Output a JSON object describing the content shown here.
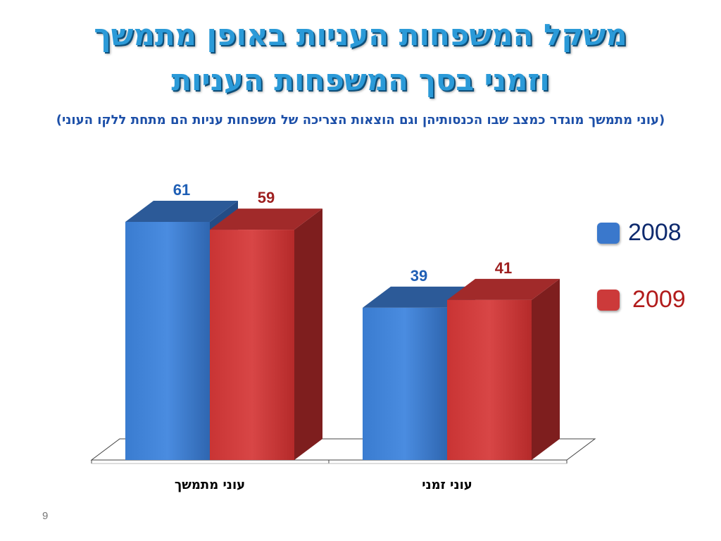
{
  "slide": {
    "title_line1": "משקל המשפחות העניות באופן מתמשך",
    "title_line2": "וזמני בסך המשפחות העניות",
    "subtitle": "(עוני מתמשך מוגדר כמצב שבו הכנסותיהן וגם הוצאות הצריכה של משפחות עניות הם מתחת ללקו העוני)",
    "page_number": "9"
  },
  "legend": [
    {
      "label": "2008",
      "color": "#3a78cc",
      "text_color": "#0e2a6e"
    },
    {
      "label": "2009",
      "color": "#cc3a3a",
      "text_color": "#b21c1c"
    }
  ],
  "chart_data": {
    "type": "bar",
    "categories": [
      "עוני מתמשך",
      "עוני זמני"
    ],
    "series": [
      {
        "name": "2008",
        "values": [
          61,
          39
        ],
        "color": "#3a78cc",
        "label_color": "#1f5fb5"
      },
      {
        "name": "2009",
        "values": [
          59,
          41
        ],
        "color": "#cc3a3a",
        "label_color": "#9e1f1f"
      }
    ],
    "ylim": [
      0,
      61
    ],
    "grid": false,
    "legend_position": "right",
    "three_d": true
  }
}
